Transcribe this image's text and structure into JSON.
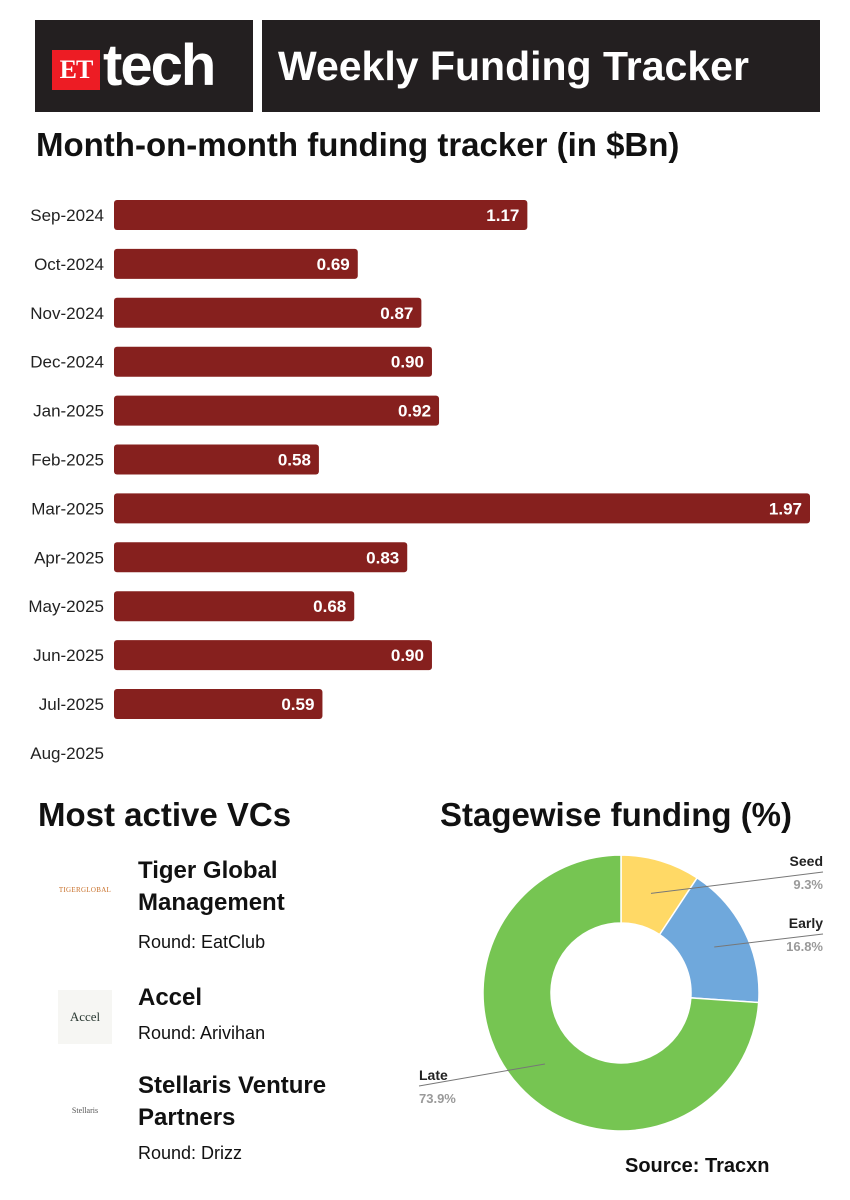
{
  "header": {
    "logo_et": "ET",
    "logo_tech": "tech",
    "title": "Weekly Funding Tracker"
  },
  "colors": {
    "bar": "#86201e",
    "bar_label": "#ffffff",
    "seed": "#ffd966",
    "early": "#6fa8dc",
    "late": "#76c552",
    "header_bg": "#231f20",
    "logo_red": "#ed1c24"
  },
  "chart_data": [
    {
      "type": "bar",
      "orientation": "horizontal",
      "title": "Month-on-month funding tracker (in $Bn)",
      "categories": [
        "Sep-2024",
        "Oct-2024",
        "Nov-2024",
        "Dec-2024",
        "Jan-2025",
        "Feb-2025",
        "Mar-2025",
        "Apr-2025",
        "May-2025",
        "Jun-2025",
        "Jul-2025",
        "Aug-2025"
      ],
      "values": [
        1.17,
        0.69,
        0.87,
        0.9,
        0.92,
        0.58,
        1.97,
        0.83,
        0.68,
        0.9,
        0.59,
        null
      ],
      "value_labels": [
        "1.17",
        "0.69",
        "0.87",
        "0.90",
        "0.92",
        "0.58",
        "1.97",
        "0.83",
        "0.68",
        "0.90",
        "0.59",
        ""
      ],
      "xlim": [
        0,
        1.97
      ],
      "grid": false,
      "legend": "none"
    },
    {
      "type": "pie",
      "style": "donut",
      "title": "Stagewise funding (%)",
      "labels": [
        "Seed",
        "Early",
        "Late"
      ],
      "values": [
        9.3,
        16.8,
        73.9
      ],
      "value_labels": [
        "9.3%",
        "16.8%",
        "73.9%"
      ]
    }
  ],
  "vcs": {
    "title": "Most active VCs",
    "items": [
      {
        "name": "Tiger Global Management",
        "round": "Round: EatClub",
        "logo_text": "TIGERGLOBAL"
      },
      {
        "name": "Accel",
        "round": "Round: Arivihan",
        "logo_text": "Accel"
      },
      {
        "name": "Stellaris Venture Partners",
        "round": "Round: Drizz",
        "logo_text": "Stellaris"
      }
    ]
  },
  "source": "Source: Tracxn"
}
